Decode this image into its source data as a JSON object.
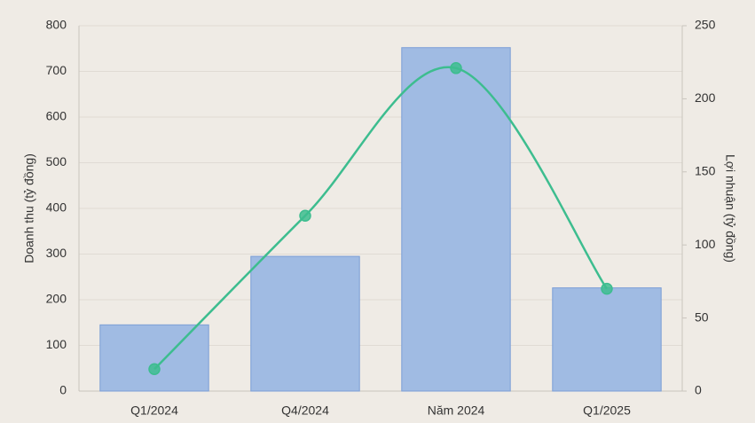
{
  "chart_data": {
    "type": "bar-line",
    "categories": [
      "Q1/2024",
      "Q4/2024",
      "Năm 2024",
      "Q1/2025"
    ],
    "ylabel": "Doanh thu (tỷ đồng)",
    "y2label": "Lợi nhuận (tỷ đồng)",
    "series": [
      {
        "type": "bar",
        "color": "#a0bbe3",
        "values": [
          145,
          295,
          752,
          226
        ]
      },
      {
        "type": "line",
        "color": "#3dbd8f",
        "axis": "y2",
        "values": [
          15,
          120,
          221,
          70
        ]
      }
    ],
    "ylim": [
      0,
      800
    ],
    "yticks": [
      0,
      100,
      200,
      300,
      400,
      500,
      600,
      700,
      800
    ],
    "y2lim": [
      0,
      250
    ],
    "y2ticks": [
      0,
      50,
      100,
      150,
      200,
      250
    ],
    "grid": true
  }
}
